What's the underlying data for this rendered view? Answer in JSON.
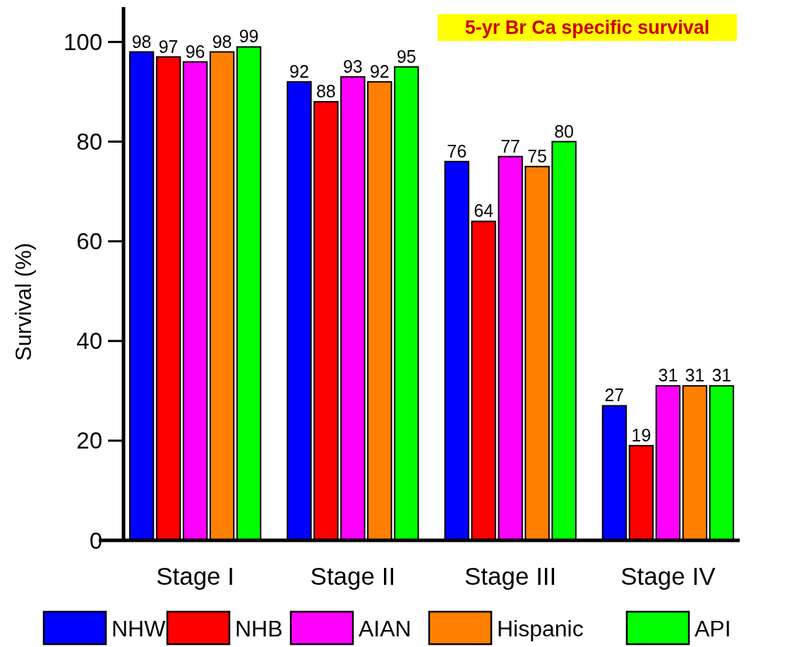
{
  "chart_data": {
    "type": "bar",
    "title": "5-yr Br Ca specific survival",
    "ylabel": "Survival (%)",
    "categories": [
      "Stage I",
      "Stage II",
      "Stage III",
      "Stage IV"
    ],
    "series": [
      {
        "name": "NHW",
        "color": "#0000ff",
        "values": [
          98,
          92,
          76,
          27
        ]
      },
      {
        "name": "NHB",
        "color": "#ff0000",
        "values": [
          97,
          88,
          64,
          19
        ]
      },
      {
        "name": "AIAN",
        "color": "#ff00ff",
        "values": [
          96,
          93,
          77,
          31
        ]
      },
      {
        "name": "Hispanic",
        "color": "#ff8000",
        "values": [
          98,
          92,
          75,
          31
        ]
      },
      {
        "name": "API",
        "color": "#00ff00",
        "values": [
          99,
          95,
          80,
          31
        ]
      }
    ],
    "ylim": [
      0,
      107
    ],
    "yticks": [
      0,
      20,
      40,
      60,
      80,
      100
    ],
    "data_labels": true,
    "legend": "bottom",
    "grid": false
  }
}
